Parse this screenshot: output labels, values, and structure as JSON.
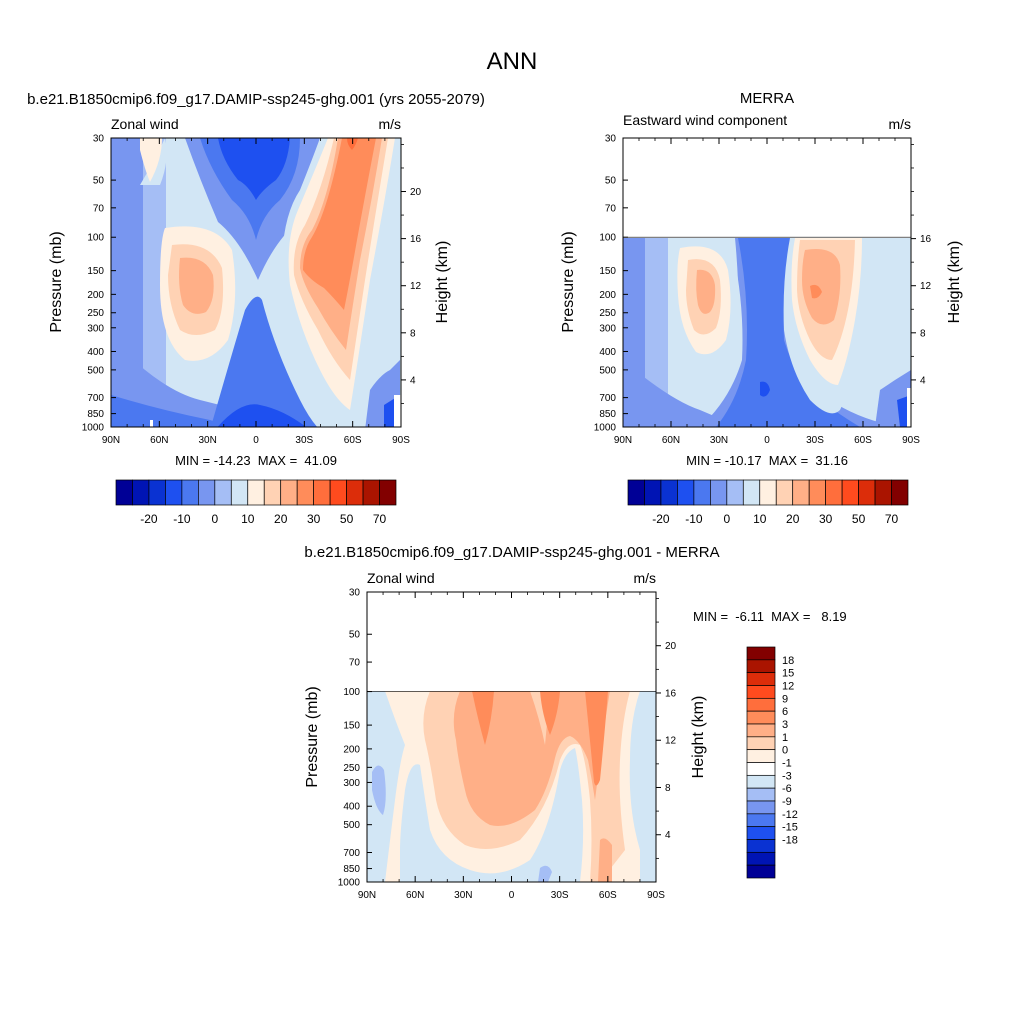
{
  "figure": {
    "main_title": "ANN"
  },
  "colorbar_top": {
    "colors": [
      "#000096",
      "#0014b4",
      "#0a32d2",
      "#1e50f0",
      "#4b78f0",
      "#7896f0",
      "#a5bef5",
      "#d2e6f5",
      "#fff0e1",
      "#ffd2b4",
      "#ffaf87",
      "#ff8c5a",
      "#ff6e3c",
      "#ff4b1e",
      "#dc2d0a",
      "#aa1400",
      "#820000"
    ],
    "tick_labels": [
      "-20",
      "-10",
      "0",
      "10",
      "20",
      "30",
      "50",
      "70"
    ],
    "tick_boundaries": [
      2,
      4,
      6,
      8,
      10,
      12,
      14,
      16
    ]
  },
  "colorbar_diff": {
    "colors": [
      "#000096",
      "#0014b4",
      "#0a32d2",
      "#1e50f0",
      "#4b78f0",
      "#7896f0",
      "#a5bef5",
      "#d2e6f5",
      "#ffffff",
      "#fff0e1",
      "#ffd2b4",
      "#ffaf87",
      "#ff8c5a",
      "#ff6e3c",
      "#ff4b1e",
      "#dc2d0a",
      "#aa1400",
      "#820000"
    ],
    "levels": [
      "-18",
      "-15",
      "-12",
      "-9",
      "-6",
      "-3",
      "-1",
      "0",
      "1",
      "3",
      "6",
      "9",
      "12",
      "15",
      "18"
    ]
  },
  "chart_data": [
    {
      "type": "heatmap",
      "title": "b.e21.B1850cmip6.f09_g17.DAMIP-ssp245-ghg.001 (yrs 2055-2079)",
      "left_label": "Zonal wind",
      "right_label": "m/s",
      "xlabel": "",
      "ylabel": "Pressure (mb)",
      "ylabel_right": "Height (km)",
      "x_ticks": [
        "90N",
        "60N",
        "30N",
        "0",
        "30S",
        "60S",
        "90S"
      ],
      "y_ticks": [
        30,
        50,
        70,
        100,
        150,
        200,
        250,
        300,
        400,
        500,
        700,
        850,
        1000
      ],
      "height_ticks": [
        4,
        8,
        12,
        16,
        20
      ],
      "ylim": [
        1000,
        30
      ],
      "log_y": true,
      "data_top_pressure": 30,
      "stats": "MIN = -14.23  MAX =  41.09",
      "min": -14.23,
      "max": 41.09,
      "units": "m/s"
    },
    {
      "type": "heatmap",
      "title": "MERRA",
      "left_label": "Eastward wind component",
      "right_label": "m/s",
      "xlabel": "",
      "ylabel": "Pressure (mb)",
      "ylabel_right": "Height (km)",
      "x_ticks": [
        "90N",
        "60N",
        "30N",
        "0",
        "30S",
        "60S",
        "90S"
      ],
      "y_ticks": [
        30,
        50,
        70,
        100,
        150,
        200,
        250,
        300,
        400,
        500,
        700,
        850,
        1000
      ],
      "height_ticks": [
        4,
        8,
        12,
        16
      ],
      "ylim": [
        1000,
        30
      ],
      "log_y": true,
      "data_top_pressure": 100,
      "stats": "MIN = -10.17  MAX =  31.16",
      "min": -10.17,
      "max": 31.16,
      "units": "m/s"
    },
    {
      "type": "heatmap",
      "title": "b.e21.B1850cmip6.f09_g17.DAMIP-ssp245-ghg.001 - MERRA",
      "left_label": "Zonal wind",
      "right_label": "m/s",
      "xlabel": "",
      "ylabel": "Pressure (mb)",
      "ylabel_right": "Height (km)",
      "x_ticks": [
        "90N",
        "60N",
        "30N",
        "0",
        "30S",
        "60S",
        "90S"
      ],
      "y_ticks": [
        30,
        50,
        70,
        100,
        150,
        200,
        250,
        300,
        400,
        500,
        700,
        850,
        1000
      ],
      "height_ticks": [
        4,
        8,
        12,
        16,
        20
      ],
      "ylim": [
        1000,
        30
      ],
      "log_y": true,
      "data_top_pressure": 100,
      "stats": "MIN =  -6.11  MAX =   8.19",
      "min": -6.11,
      "max": 8.19,
      "units": "m/s"
    }
  ]
}
